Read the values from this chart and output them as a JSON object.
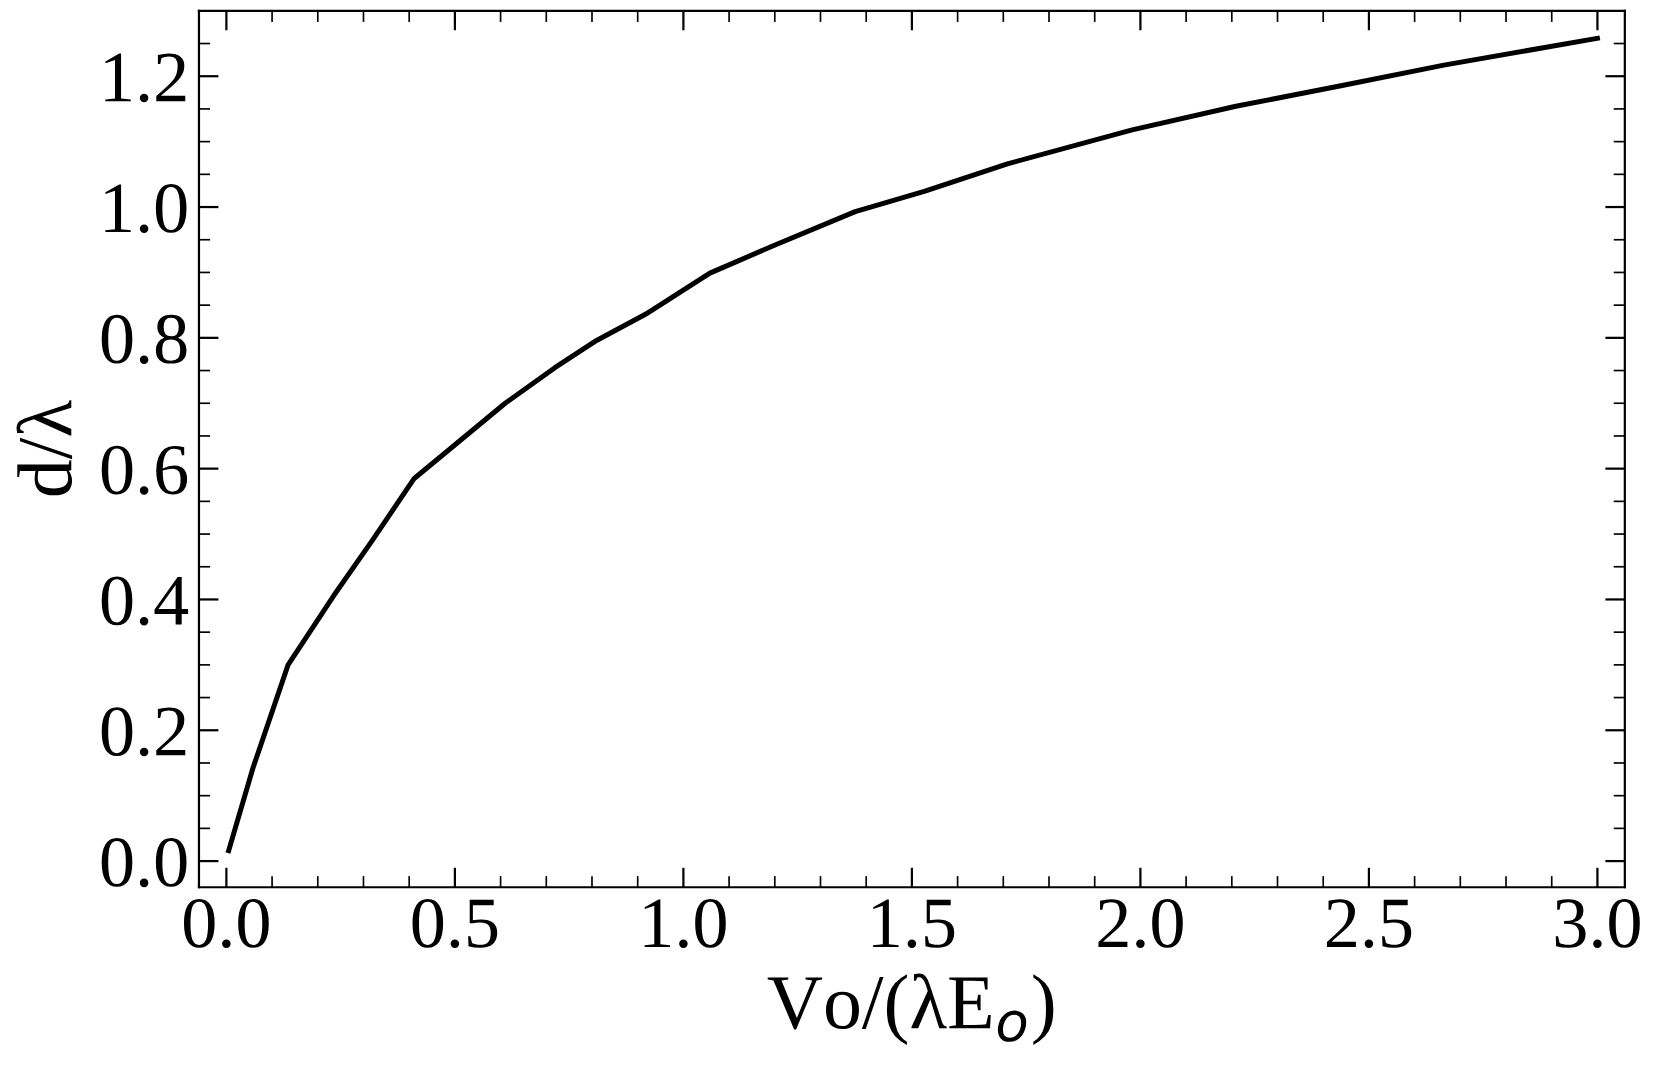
{
  "chart_data": {
    "type": "line",
    "xlabel": "Vo/(λE$_{o}$)",
    "ylabel": "d/λ",
    "xlim": [
      -0.06,
      3.06
    ],
    "ylim": [
      -0.04,
      1.3
    ],
    "xticks": [
      {
        "value": 0,
        "label": "0.0"
      },
      0.5,
      {
        "value": 1,
        "label": "1.0"
      },
      1.5,
      {
        "value": 2,
        "label": "2.0"
      },
      2.5,
      {
        "value": 3,
        "label": "3.0"
      }
    ],
    "yticks": [
      {
        "value": 0,
        "label": "0.0"
      },
      0.2,
      0.4,
      0.6,
      0.8,
      {
        "value": 1,
        "label": "1.0"
      },
      1.2
    ],
    "grid": false,
    "legend": false,
    "marker": "none",
    "line_style": "solid",
    "series": [
      {
        "color": "#000000",
        "x": [
          0.005,
          0.058,
          0.135,
          0.235,
          0.319,
          0.411,
          0.503,
          0.61,
          0.718,
          0.81,
          0.917,
          1.058,
          1.194,
          1.376,
          1.527,
          1.709,
          1.982,
          2.209,
          2.436,
          2.664,
          3.0
        ],
        "values": [
          0.016,
          0.142,
          0.3,
          0.406,
          0.49,
          0.585,
          0.638,
          0.7,
          0.754,
          0.796,
          0.836,
          0.899,
          0.94,
          0.993,
          1.024,
          1.066,
          1.118,
          1.154,
          1.185,
          1.217,
          1.258
        ]
      }
    ]
  }
}
